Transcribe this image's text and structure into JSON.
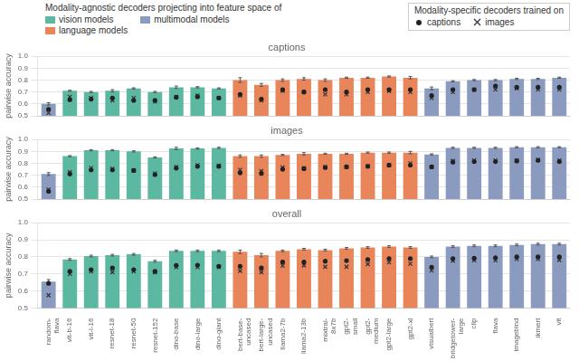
{
  "chart_data": [
    {
      "type": "bar",
      "title": "captions",
      "ylabel": "pairwise accuracy",
      "categories": [
        "random-\nflava",
        "vit-b-16",
        "vit-l-16",
        "resnet-18",
        "resnet-50",
        "resnet-152",
        "dino-base",
        "dino-large",
        "dino-giant",
        "bert-base-\nuncased",
        "bert-large-\nuncased",
        "llama2-7b",
        "llama2-13b",
        "mixtral-\n8x7b",
        "gpt2-\nsmall",
        "gpt2-\nmedium",
        "gpt2-large",
        "gpt2-xl",
        "visualbert",
        "bridgetower-\nlarge",
        "clip",
        "flava",
        "imagebind",
        "ikmert",
        "vit"
      ],
      "series": [
        {
          "name": "vision models",
          "type": "bar",
          "color": "#5cb8a0",
          "values": [
            null,
            0.71,
            0.7,
            0.71,
            0.73,
            0.7,
            0.74,
            0.74,
            0.73,
            null,
            null,
            null,
            null,
            null,
            null,
            null,
            null,
            null,
            null,
            null,
            null,
            null,
            null,
            null,
            null
          ],
          "errors": [
            null,
            0.005,
            0.005,
            0.01,
            0.005,
            0.005,
            0.01,
            0.005,
            0.005,
            null,
            null,
            null,
            null,
            null,
            null,
            null,
            null,
            null,
            null,
            null,
            null,
            null,
            null,
            null,
            null
          ]
        },
        {
          "name": "language models",
          "type": "bar",
          "color": "#e8855a",
          "values": [
            null,
            null,
            null,
            null,
            null,
            null,
            null,
            null,
            null,
            0.8,
            0.76,
            0.8,
            0.81,
            0.8,
            0.82,
            0.82,
            0.83,
            0.82,
            null,
            null,
            null,
            null,
            null,
            null,
            null
          ],
          "errors": [
            null,
            null,
            null,
            null,
            null,
            null,
            null,
            null,
            null,
            0.02,
            0.012,
            0.01,
            0.01,
            0.01,
            0.005,
            0.005,
            0.005,
            0.01,
            null,
            null,
            null,
            null,
            null,
            null,
            null
          ]
        },
        {
          "name": "multimodal models",
          "type": "bar",
          "color": "#8a9bbf",
          "values": [
            0.6,
            null,
            null,
            null,
            null,
            null,
            null,
            null,
            null,
            null,
            null,
            null,
            null,
            null,
            null,
            null,
            null,
            null,
            0.73,
            0.79,
            0.8,
            0.8,
            0.81,
            0.81,
            0.82
          ],
          "errors": [
            0.01,
            null,
            null,
            null,
            null,
            null,
            null,
            null,
            null,
            null,
            null,
            null,
            null,
            null,
            null,
            null,
            null,
            null,
            0.012,
            0.005,
            0.005,
            0.005,
            0.005,
            0.005,
            0.005
          ]
        },
        {
          "name": "captions",
          "type": "scatter",
          "marker": "circle",
          "color": "#222222",
          "values": [
            0.555,
            0.635,
            0.64,
            0.65,
            0.63,
            0.63,
            0.655,
            0.66,
            0.65,
            0.68,
            0.64,
            0.72,
            0.7,
            0.72,
            0.7,
            0.72,
            0.72,
            0.72,
            0.67,
            0.72,
            0.72,
            0.75,
            0.74,
            0.74,
            0.74
          ]
        },
        {
          "name": "images",
          "type": "scatter",
          "marker": "x",
          "color": "#333333",
          "values": [
            0.525,
            0.66,
            0.65,
            0.63,
            0.65,
            0.62,
            0.66,
            0.67,
            0.65,
            0.67,
            0.63,
            0.71,
            0.7,
            0.68,
            0.68,
            0.7,
            0.71,
            0.7,
            0.65,
            0.7,
            0.72,
            0.72,
            0.73,
            0.72,
            0.72
          ]
        }
      ],
      "ylim": [
        0.5,
        1.0
      ],
      "yticks": [
        0.5,
        0.6,
        0.7,
        0.8,
        0.9,
        {
          "value": 1.0,
          "label": "1.0"
        }
      ],
      "grid": true,
      "tick_labels": "y",
      "legend": "top",
      "annotations": [
        "Modality-agnostic decoders projecting into feature space of",
        "Modality-specific decoders trained on"
      ]
    },
    {
      "type": "bar",
      "title": "images",
      "ylabel": "pairwise accuracy",
      "categories": [
        "random-\nflava",
        "vit-b-16",
        "vit-l-16",
        "resnet-18",
        "resnet-50",
        "resnet-152",
        "dino-base",
        "dino-large",
        "dino-giant",
        "bert-base-\nuncased",
        "bert-large-\nuncased",
        "llama2-7b",
        "llama2-13b",
        "mixtral-\n8x7b",
        "gpt2-\nsmall",
        "gpt2-\nmedium",
        "gpt2-large",
        "gpt2-xl",
        "visualbert",
        "bridgetower-\nlarge",
        "clip",
        "flava",
        "imagebind",
        "ikmert",
        "vit"
      ],
      "series": [
        {
          "name": "vision models",
          "type": "bar",
          "color": "#5cb8a0",
          "values": [
            null,
            0.86,
            0.91,
            0.91,
            0.9,
            0.85,
            0.925,
            0.925,
            0.93,
            null,
            null,
            null,
            null,
            null,
            null,
            null,
            null,
            null,
            null,
            null,
            null,
            null,
            null,
            null,
            null
          ],
          "errors": [
            null,
            0.005,
            0.005,
            0.005,
            0.005,
            0.005,
            0.01,
            0.005,
            0.005,
            null,
            null,
            null,
            null,
            null,
            null,
            null,
            null,
            null,
            null,
            null,
            null,
            null,
            null,
            null,
            null
          ]
        },
        {
          "name": "language models",
          "type": "bar",
          "color": "#e8855a",
          "values": [
            null,
            null,
            null,
            null,
            null,
            null,
            null,
            null,
            null,
            0.86,
            0.86,
            0.87,
            0.88,
            0.88,
            0.88,
            0.89,
            0.89,
            0.89,
            null,
            null,
            null,
            null,
            null,
            null,
            null
          ],
          "errors": [
            null,
            null,
            null,
            null,
            null,
            null,
            null,
            null,
            null,
            0.01,
            0.01,
            0.005,
            0.01,
            0.005,
            0.005,
            0.005,
            0.005,
            0.01,
            null,
            null,
            null,
            null,
            null,
            null,
            null
          ]
        },
        {
          "name": "multimodal models",
          "type": "bar",
          "color": "#8a9bbf",
          "values": [
            0.71,
            null,
            null,
            null,
            null,
            null,
            null,
            null,
            null,
            null,
            null,
            null,
            null,
            null,
            null,
            null,
            null,
            null,
            0.875,
            0.93,
            0.93,
            0.93,
            0.935,
            0.935,
            0.935
          ],
          "errors": [
            0.012,
            null,
            null,
            null,
            null,
            null,
            null,
            null,
            null,
            null,
            null,
            null,
            null,
            null,
            null,
            null,
            null,
            null,
            0.005,
            0.005,
            0.005,
            0.005,
            0.005,
            0.005,
            0.005
          ]
        },
        {
          "name": "captions",
          "type": "scatter",
          "marker": "circle",
          "color": "#222222",
          "values": [
            0.565,
            0.71,
            0.745,
            0.745,
            0.74,
            0.705,
            0.76,
            0.775,
            0.775,
            0.72,
            0.715,
            0.75,
            0.755,
            0.765,
            0.77,
            0.775,
            0.785,
            0.785,
            0.77,
            0.81,
            0.815,
            0.815,
            0.82,
            0.825,
            0.815
          ]
        },
        {
          "name": "images",
          "type": "scatter",
          "marker": "x",
          "color": "#333333",
          "values": [
            0.58,
            0.725,
            0.76,
            0.755,
            0.74,
            0.715,
            0.77,
            0.785,
            0.78,
            0.745,
            0.735,
            0.765,
            0.76,
            0.77,
            0.77,
            0.775,
            0.785,
            0.8,
            0.77,
            0.82,
            0.825,
            0.825,
            0.825,
            0.83,
            0.825
          ]
        }
      ],
      "ylim": [
        0.5,
        1.0
      ],
      "yticks": [
        0.5,
        0.6,
        0.7,
        0.8,
        0.9,
        {
          "value": 1.0,
          "label": "1.0"
        }
      ],
      "grid": true,
      "tick_labels": "y"
    },
    {
      "type": "bar",
      "title": "overall",
      "ylabel": "pairwise accuracy",
      "categories": [
        "random-\nflava",
        "vit-b-16",
        "vit-l-16",
        "resnet-18",
        "resnet-50",
        "resnet-152",
        "dino-base",
        "dino-large",
        "dino-giant",
        "bert-base-\nuncased",
        "bert-large-\nuncased",
        "llama2-7b",
        "llama2-13b",
        "mixtral-\n8x7b",
        "gpt2-\nsmall",
        "gpt2-\nmedium",
        "gpt2-large",
        "gpt2-xl",
        "visualbert",
        "bridgetower-\nlarge",
        "clip",
        "flava",
        "imagebind",
        "ikmert",
        "vit"
      ],
      "series": [
        {
          "name": "vision models",
          "type": "bar",
          "color": "#5cb8a0",
          "values": [
            null,
            0.785,
            0.805,
            0.81,
            0.815,
            0.775,
            0.835,
            0.835,
            0.835,
            null,
            null,
            null,
            null,
            null,
            null,
            null,
            null,
            null,
            null,
            null,
            null,
            null,
            null,
            null,
            null
          ],
          "errors": [
            null,
            0.005,
            0.005,
            0.005,
            0.005,
            0.005,
            0.005,
            0.005,
            0.005,
            null,
            null,
            null,
            null,
            null,
            null,
            null,
            null,
            null,
            null,
            null,
            null,
            null,
            null,
            null,
            null
          ]
        },
        {
          "name": "language models",
          "type": "bar",
          "color": "#e8855a",
          "values": [
            null,
            null,
            null,
            null,
            null,
            null,
            null,
            null,
            null,
            0.83,
            0.81,
            0.835,
            0.845,
            0.84,
            0.85,
            0.855,
            0.86,
            0.855,
            null,
            null,
            null,
            null,
            null,
            null,
            null
          ],
          "errors": [
            null,
            null,
            null,
            null,
            null,
            null,
            null,
            null,
            null,
            0.01,
            0.01,
            0.005,
            0.005,
            0.005,
            0.005,
            0.005,
            0.005,
            0.005,
            null,
            null,
            null,
            null,
            null,
            null,
            null
          ]
        },
        {
          "name": "multimodal models",
          "type": "bar",
          "color": "#8a9bbf",
          "values": [
            0.655,
            null,
            null,
            null,
            null,
            null,
            null,
            null,
            null,
            null,
            null,
            null,
            null,
            null,
            null,
            null,
            null,
            null,
            0.8,
            0.86,
            0.865,
            0.865,
            0.87,
            0.875,
            0.875
          ],
          "errors": [
            0.012,
            null,
            null,
            null,
            null,
            null,
            null,
            null,
            null,
            null,
            null,
            null,
            null,
            null,
            null,
            null,
            null,
            null,
            0.005,
            0.005,
            0.005,
            0.005,
            0.005,
            0.005,
            0.005
          ]
        },
        {
          "name": "captions",
          "type": "scatter",
          "marker": "circle",
          "color": "#222222",
          "values": [
            0.645,
            0.715,
            0.725,
            0.735,
            0.725,
            0.715,
            0.75,
            0.752,
            0.745,
            0.745,
            0.735,
            0.77,
            0.77,
            0.775,
            0.778,
            0.785,
            0.79,
            0.79,
            0.74,
            0.79,
            0.792,
            0.795,
            0.8,
            0.8,
            0.8
          ]
        },
        {
          "name": "images",
          "type": "scatter",
          "marker": "x",
          "color": "#333333",
          "values": [
            0.575,
            0.7,
            0.715,
            0.71,
            0.715,
            0.71,
            0.74,
            0.74,
            0.74,
            0.718,
            0.71,
            0.748,
            0.75,
            0.742,
            0.742,
            0.758,
            0.768,
            0.76,
            0.72,
            0.778,
            0.78,
            0.78,
            0.788,
            0.788,
            0.782
          ]
        }
      ],
      "ylim": [
        0.5,
        1.0
      ],
      "yticks": [
        0.5,
        0.6,
        0.7,
        0.8,
        0.9,
        {
          "value": 1.0,
          "label": "1.0"
        }
      ],
      "grid": true
    }
  ]
}
